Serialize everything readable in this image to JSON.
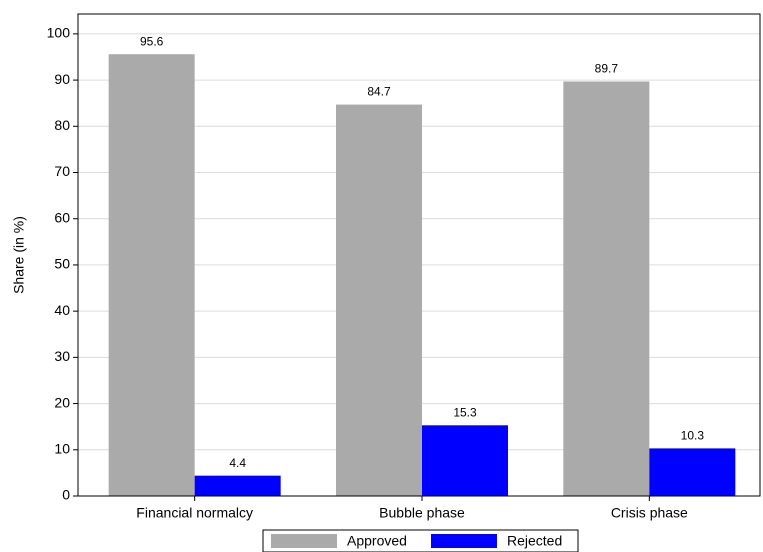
{
  "chart_data": {
    "type": "bar",
    "y_label": "Share (in %)",
    "categories": [
      "Financial normalcy",
      "Bubble phase",
      "Crisis phase"
    ],
    "series": [
      {
        "name": "Approved",
        "color": "#aaaaaa",
        "values": [
          95.6,
          84.7,
          89.7
        ]
      },
      {
        "name": "Rejected",
        "color": "#0000ff",
        "values": [
          4.4,
          15.3,
          10.3
        ]
      }
    ],
    "ylim": [
      0,
      104.3
    ],
    "yticks": [
      0,
      10,
      20,
      30,
      40,
      50,
      60,
      70,
      80,
      90,
      100
    ],
    "grid": true,
    "legend": "bottom"
  }
}
